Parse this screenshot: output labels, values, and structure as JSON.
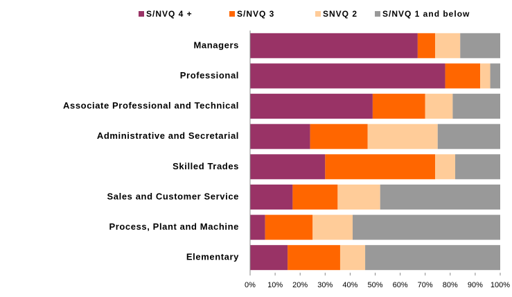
{
  "chart_data": {
    "type": "stacked-bar-horizontal",
    "categories": [
      "Managers",
      "Professional",
      "Associate Professional and Technical",
      "Administrative and Secretarial",
      "Skilled Trades",
      "Sales and Customer Service",
      "Process, Plant and Machine",
      "Elementary"
    ],
    "series": [
      {
        "name": "S/NVQ 4 +",
        "color": "#993366",
        "values": [
          67,
          78,
          49,
          24,
          30,
          17,
          6,
          15
        ]
      },
      {
        "name": "S/NVQ 3",
        "color": "#ff6600",
        "values": [
          7,
          14,
          21,
          23,
          44,
          18,
          19,
          21
        ]
      },
      {
        "name": "SNVQ 2",
        "color": "#ffcc99",
        "values": [
          10,
          4,
          11,
          28,
          8,
          17,
          16,
          10
        ]
      },
      {
        "name": "S/NVQ 1 and below",
        "color": "#999999",
        "values": [
          16,
          4,
          19,
          25,
          18,
          48,
          59,
          54
        ]
      }
    ],
    "xlim": [
      0,
      100
    ],
    "xticks": [
      {
        "value": 0,
        "label": "0%"
      },
      {
        "value": 10,
        "label": "10%"
      },
      {
        "value": 20,
        "label": "20%"
      },
      {
        "value": 30,
        "label": "30%"
      },
      {
        "value": 40,
        "label": "40%"
      },
      {
        "value": 50,
        "label": "50%"
      },
      {
        "value": 60,
        "label": "60%"
      },
      {
        "value": 70,
        "label": "70%"
      },
      {
        "value": 80,
        "label": "80%"
      },
      {
        "value": 90,
        "label": "90%"
      },
      {
        "value": 100,
        "label": "100%"
      }
    ],
    "legend": "top"
  }
}
